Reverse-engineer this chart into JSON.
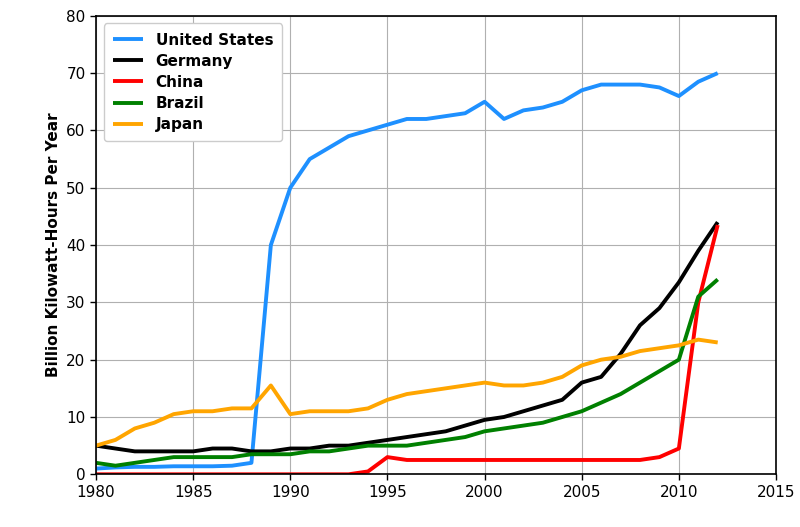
{
  "title": "",
  "ylabel": "Billion Kilowatt-Hours Per Year",
  "xlim": [
    1980,
    2015
  ],
  "ylim": [
    0,
    80
  ],
  "yticks": [
    0,
    10,
    20,
    30,
    40,
    50,
    60,
    70,
    80
  ],
  "xticks": [
    1980,
    1985,
    1990,
    1995,
    2000,
    2005,
    2010,
    2015
  ],
  "series": [
    {
      "label": "United States",
      "color": "#1E90FF",
      "linewidth": 2.8,
      "x": [
        1980,
        1981,
        1982,
        1983,
        1984,
        1985,
        1986,
        1987,
        1988,
        1989,
        1990,
        1991,
        1992,
        1993,
        1994,
        1995,
        1996,
        1997,
        1998,
        1999,
        2000,
        2001,
        2002,
        2003,
        2004,
        2005,
        2006,
        2007,
        2008,
        2009,
        2010,
        2011,
        2012
      ],
      "y": [
        1.0,
        1.2,
        1.3,
        1.3,
        1.4,
        1.4,
        1.4,
        1.5,
        2.0,
        40.0,
        50.0,
        55.0,
        57.0,
        59.0,
        60.0,
        61.0,
        62.0,
        62.0,
        62.5,
        63.0,
        65.0,
        62.0,
        63.5,
        64.0,
        65.0,
        67.0,
        68.0,
        68.0,
        68.0,
        67.5,
        66.0,
        68.5,
        70.0
      ]
    },
    {
      "label": "Germany",
      "color": "#000000",
      "linewidth": 2.8,
      "x": [
        1980,
        1981,
        1982,
        1983,
        1984,
        1985,
        1986,
        1987,
        1988,
        1989,
        1990,
        1991,
        1992,
        1993,
        1994,
        1995,
        1996,
        1997,
        1998,
        1999,
        2000,
        2001,
        2002,
        2003,
        2004,
        2005,
        2006,
        2007,
        2008,
        2009,
        2010,
        2011,
        2012
      ],
      "y": [
        5.0,
        4.5,
        4.0,
        4.0,
        4.0,
        4.0,
        4.5,
        4.5,
        4.0,
        4.0,
        4.5,
        4.5,
        5.0,
        5.0,
        5.5,
        6.0,
        6.5,
        7.0,
        7.5,
        8.5,
        9.5,
        10.0,
        11.0,
        12.0,
        13.0,
        16.0,
        17.0,
        21.0,
        26.0,
        29.0,
        33.5,
        39.0,
        44.0
      ]
    },
    {
      "label": "China",
      "color": "#FF0000",
      "linewidth": 2.8,
      "x": [
        1980,
        1981,
        1982,
        1983,
        1984,
        1985,
        1986,
        1987,
        1988,
        1989,
        1990,
        1991,
        1992,
        1993,
        1994,
        1995,
        1996,
        1997,
        1998,
        1999,
        2000,
        2001,
        2002,
        2003,
        2004,
        2005,
        2006,
        2007,
        2008,
        2009,
        2010,
        2011,
        2012
      ],
      "y": [
        0.0,
        0.0,
        0.0,
        0.0,
        0.0,
        0.0,
        0.0,
        0.0,
        0.0,
        0.0,
        0.0,
        0.0,
        0.0,
        0.0,
        0.5,
        3.0,
        2.5,
        2.5,
        2.5,
        2.5,
        2.5,
        2.5,
        2.5,
        2.5,
        2.5,
        2.5,
        2.5,
        2.5,
        2.5,
        3.0,
        4.5,
        30.0,
        43.5
      ]
    },
    {
      "label": "Brazil",
      "color": "#008000",
      "linewidth": 2.8,
      "x": [
        1980,
        1981,
        1982,
        1983,
        1984,
        1985,
        1986,
        1987,
        1988,
        1989,
        1990,
        1991,
        1992,
        1993,
        1994,
        1995,
        1996,
        1997,
        1998,
        1999,
        2000,
        2001,
        2002,
        2003,
        2004,
        2005,
        2006,
        2007,
        2008,
        2009,
        2010,
        2011,
        2012
      ],
      "y": [
        2.0,
        1.5,
        2.0,
        2.5,
        3.0,
        3.0,
        3.0,
        3.0,
        3.5,
        3.5,
        3.5,
        4.0,
        4.0,
        4.5,
        5.0,
        5.0,
        5.0,
        5.5,
        6.0,
        6.5,
        7.5,
        8.0,
        8.5,
        9.0,
        10.0,
        11.0,
        12.5,
        14.0,
        16.0,
        18.0,
        20.0,
        31.0,
        34.0
      ]
    },
    {
      "label": "Japan",
      "color": "#FFA500",
      "linewidth": 2.8,
      "x": [
        1980,
        1981,
        1982,
        1983,
        1984,
        1985,
        1986,
        1987,
        1988,
        1989,
        1990,
        1991,
        1992,
        1993,
        1994,
        1995,
        1996,
        1997,
        1998,
        1999,
        2000,
        2001,
        2002,
        2003,
        2004,
        2005,
        2006,
        2007,
        2008,
        2009,
        2010,
        2011,
        2012
      ],
      "y": [
        5.0,
        6.0,
        8.0,
        9.0,
        10.5,
        11.0,
        11.0,
        11.5,
        11.5,
        15.5,
        10.5,
        11.0,
        11.0,
        11.0,
        11.5,
        13.0,
        14.0,
        14.5,
        15.0,
        15.5,
        16.0,
        15.5,
        15.5,
        16.0,
        17.0,
        19.0,
        20.0,
        20.5,
        21.5,
        22.0,
        22.5,
        23.5,
        23.0
      ]
    }
  ],
  "legend_loc": "upper left",
  "background_color": "#ffffff",
  "grid_color": "#b0b0b0",
  "spine_color": "#000000",
  "tick_fontsize": 11,
  "ylabel_fontsize": 11,
  "legend_fontsize": 11
}
